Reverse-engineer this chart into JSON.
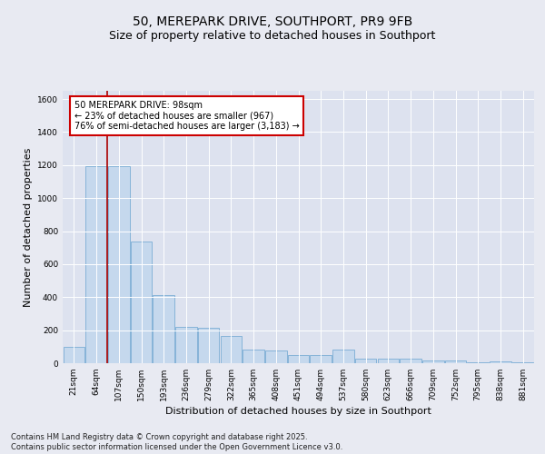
{
  "title": "50, MEREPARK DRIVE, SOUTHPORT, PR9 9FB",
  "subtitle": "Size of property relative to detached houses in Southport",
  "xlabel": "Distribution of detached houses by size in Southport",
  "ylabel": "Number of detached properties",
  "categories": [
    "21sqm",
    "64sqm",
    "107sqm",
    "150sqm",
    "193sqm",
    "236sqm",
    "279sqm",
    "322sqm",
    "365sqm",
    "408sqm",
    "451sqm",
    "494sqm",
    "537sqm",
    "580sqm",
    "623sqm",
    "666sqm",
    "709sqm",
    "752sqm",
    "795sqm",
    "838sqm",
    "881sqm"
  ],
  "values": [
    100,
    1195,
    1195,
    735,
    415,
    220,
    215,
    165,
    85,
    75,
    50,
    50,
    80,
    30,
    30,
    30,
    15,
    15,
    5,
    10,
    5
  ],
  "bar_color": "#c5d8ed",
  "bar_edge_color": "#7aadd4",
  "vline_x": 1.5,
  "vline_color": "#aa0000",
  "annotation_text": "50 MEREPARK DRIVE: 98sqm\n← 23% of detached houses are smaller (967)\n76% of semi-detached houses are larger (3,183) →",
  "annotation_box_facecolor": "#ffffff",
  "annotation_box_edgecolor": "#cc0000",
  "ylim": [
    0,
    1650
  ],
  "yticks": [
    0,
    200,
    400,
    600,
    800,
    1000,
    1200,
    1400,
    1600
  ],
  "background_color": "#e8eaf2",
  "plot_background_color": "#dde2ef",
  "grid_color": "#ffffff",
  "footer": "Contains HM Land Registry data © Crown copyright and database right 2025.\nContains public sector information licensed under the Open Government Licence v3.0.",
  "title_fontsize": 10,
  "subtitle_fontsize": 9,
  "ylabel_fontsize": 8,
  "xlabel_fontsize": 8,
  "tick_fontsize": 6.5,
  "annotation_fontsize": 7,
  "footer_fontsize": 6
}
